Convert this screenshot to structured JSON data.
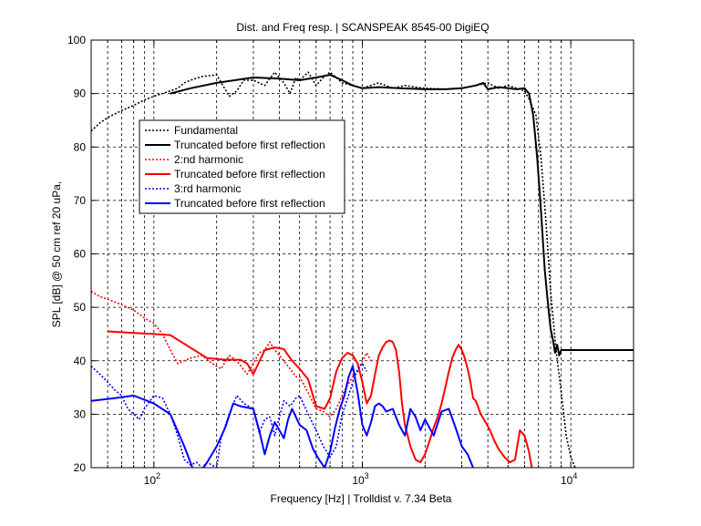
{
  "chart_data": {
    "type": "line",
    "title": "Dist. and Freq resp.  | SCANSPEAK 8545-00 DigiEQ",
    "xlabel": "Frequency [Hz] | Trolldist v. 7.34 Beta",
    "ylabel": "SPL [dB] @ 50 cm ref 20 uPa,",
    "xscale": "log",
    "xlim": [
      50,
      20000
    ],
    "ylim": [
      20,
      100
    ],
    "grid": true,
    "legend_placement": "upper-left",
    "x_tick_labels": [
      {
        "base": "10",
        "exp": "2",
        "value": 100
      },
      {
        "base": "10",
        "exp": "3",
        "value": 1000
      },
      {
        "base": "10",
        "exp": "4",
        "value": 10000
      }
    ],
    "y_ticks": [
      20,
      30,
      40,
      50,
      60,
      70,
      80,
      90,
      100
    ],
    "series": [
      {
        "name": "Fundamental",
        "color": "#000000",
        "style": "dotted",
        "x": [
          50,
          55,
          60,
          65,
          70,
          80,
          90,
          100,
          110,
          120,
          130,
          140,
          150,
          170,
          200,
          230,
          250,
          270,
          300,
          340,
          380,
          420,
          450,
          480,
          500,
          550,
          600,
          650,
          700,
          750,
          800,
          900,
          1000,
          1200,
          1400,
          1600,
          1800,
          2000,
          2500,
          3000,
          3500,
          4000,
          4500,
          5000,
          5500,
          6000,
          6300,
          6800,
          7200,
          7600,
          8000,
          8500,
          9000,
          9500,
          10000,
          10500
        ],
        "y": [
          83,
          84.5,
          85.5,
          86.2,
          86.8,
          87.8,
          88.8,
          89.5,
          90,
          90.5,
          91,
          92,
          92.5,
          93.2,
          93.5,
          89.5,
          90.5,
          92.5,
          92.5,
          91.5,
          94,
          92,
          90,
          93,
          92.5,
          94,
          91.5,
          93,
          94,
          93,
          92,
          91.5,
          91,
          92,
          91,
          91.5,
          91.2,
          91,
          90.8,
          91,
          91.5,
          92,
          91,
          91.5,
          91,
          90.5,
          89,
          86,
          78,
          66,
          53,
          42,
          34,
          26,
          22,
          20
        ]
      },
      {
        "name": "Truncated before first reflection",
        "color": "#000000",
        "style": "solid",
        "x": [
          120,
          150,
          200,
          300,
          400,
          500,
          600,
          700,
          800,
          900,
          1000,
          1200,
          1500,
          2000,
          2500,
          3000,
          3500,
          3800,
          4000,
          4500,
          5000,
          5500,
          6000,
          6300,
          6600,
          6900,
          7200,
          7500,
          7800,
          8000,
          8200,
          8400,
          8600,
          8800,
          9000,
          9500,
          10000,
          12000,
          15000,
          20000
        ],
        "y": [
          90,
          91,
          92,
          93,
          92.8,
          92.5,
          93,
          93.5,
          92.5,
          91.5,
          91,
          91.2,
          91,
          90.8,
          90.8,
          91,
          91.5,
          92,
          90.8,
          91.2,
          91,
          90.8,
          91,
          90,
          86,
          78,
          68,
          57,
          50,
          46,
          44,
          41.5,
          43,
          41,
          42,
          42,
          42,
          42,
          42,
          42
        ]
      },
      {
        "name": "2:nd harmonic",
        "color": "#ff0000",
        "style": "dotted",
        "x": [
          50,
          55,
          60,
          70,
          80,
          90,
          100,
          110,
          120,
          130,
          150,
          170,
          190,
          210,
          230,
          250,
          280,
          300,
          320,
          340,
          360,
          380,
          400,
          420,
          450,
          480,
          500,
          550,
          600,
          650,
          700,
          750,
          800,
          850,
          900,
          950,
          1000,
          1050,
          1100
        ],
        "y": [
          53,
          52,
          51.5,
          50.5,
          49.5,
          48,
          47,
          45,
          42,
          39.5,
          40.5,
          41,
          39.5,
          38.5,
          41,
          40,
          37.5,
          39.5,
          41.5,
          42,
          43.5,
          42,
          41,
          40,
          38.5,
          37,
          37,
          34,
          31,
          30.5,
          29.5,
          31,
          33.5,
          35.5,
          37,
          38,
          40,
          41.5,
          40
        ]
      },
      {
        "name": "Truncated before first reflection",
        "color": "#ff0000",
        "style": "solid",
        "x": [
          60,
          80,
          100,
          120,
          180,
          220,
          260,
          280,
          300,
          340,
          380,
          420,
          460,
          500,
          550,
          600,
          660,
          700,
          750,
          800,
          850,
          900,
          950,
          1000,
          1050,
          1100,
          1150,
          1200,
          1250,
          1300,
          1350,
          1400,
          1450,
          1500,
          1550,
          1600,
          1700,
          1800,
          1900,
          2000,
          2100,
          2200,
          2300,
          2400,
          2500,
          2600,
          2700,
          2800,
          2900,
          3000,
          3100,
          3200,
          3300,
          3400,
          3500,
          3700,
          3900,
          4100,
          4300,
          4500,
          4800,
          5100,
          5400,
          5700,
          6000,
          6300,
          6500
        ],
        "y": [
          45.5,
          45.2,
          45,
          44.8,
          40.5,
          40.2,
          40.2,
          39.5,
          37.5,
          42,
          42.5,
          42.2,
          40,
          38.5,
          36.5,
          31.5,
          31,
          33,
          38,
          40.5,
          41.5,
          41,
          39.5,
          36,
          32,
          33.5,
          37.5,
          41,
          42.5,
          43.5,
          43.8,
          43.5,
          42,
          38,
          32,
          28,
          24,
          21.5,
          21,
          22.5,
          25,
          27.5,
          29.5,
          32,
          35,
          38,
          40.5,
          42,
          43,
          42,
          40.5,
          38.5,
          36,
          33,
          32.5,
          30,
          28.5,
          27,
          25,
          23.5,
          22,
          21,
          21.5,
          27,
          26,
          23,
          20
        ]
      },
      {
        "name": "3:rd harmonic",
        "color": "#0000ff",
        "style": "dotted",
        "x": [
          50,
          55,
          60,
          65,
          70,
          75,
          80,
          85,
          90,
          100,
          110,
          120,
          130,
          140,
          150,
          160,
          170,
          180,
          200,
          210,
          230,
          250,
          270,
          300,
          320,
          340,
          360,
          380,
          400,
          420,
          450,
          480,
          500,
          550,
          600,
          650,
          700,
          750,
          800,
          850,
          900,
          950,
          1000,
          1050
        ],
        "y": [
          39,
          37.5,
          36,
          34.5,
          33.5,
          31,
          30,
          29,
          31,
          33.5,
          33,
          30,
          26,
          21.5,
          20.5,
          21,
          20,
          21,
          20,
          25.5,
          30,
          33.5,
          32,
          31,
          26.5,
          29,
          29.5,
          26,
          29.5,
          32.5,
          31.5,
          33,
          33.5,
          30,
          27,
          24,
          22,
          24,
          30,
          33,
          36,
          38.5,
          39.5,
          38
        ]
      },
      {
        "name": "Truncated before first reflection",
        "color": "#0000ff",
        "style": "solid",
        "x": [
          50,
          65,
          80,
          100,
          120,
          140,
          160,
          180,
          200,
          220,
          240,
          260,
          300,
          320,
          340,
          360,
          380,
          400,
          420,
          440,
          460,
          500,
          540,
          580,
          620,
          660,
          700,
          740,
          780,
          820,
          860,
          900,
          950,
          1000,
          1050,
          1100,
          1150,
          1200,
          1250,
          1300,
          1400,
          1500,
          1600,
          1700,
          1800,
          1900,
          2000,
          2200,
          2400,
          2600,
          2800,
          3000,
          3200,
          3400
        ],
        "y": [
          32.5,
          33,
          33.5,
          32,
          30,
          24,
          18,
          21,
          24,
          27.5,
          32,
          31.5,
          31,
          27,
          22.5,
          26,
          28.5,
          27,
          25.5,
          29,
          31,
          28,
          27,
          23.5,
          21.5,
          20,
          23,
          27.5,
          31,
          33.5,
          37,
          39,
          34,
          28,
          26,
          28.5,
          31.5,
          32,
          31.5,
          30.5,
          31,
          28,
          26,
          31,
          29.5,
          27,
          29,
          26,
          30.5,
          31,
          27.5,
          24,
          22.5,
          20
        ]
      }
    ]
  }
}
